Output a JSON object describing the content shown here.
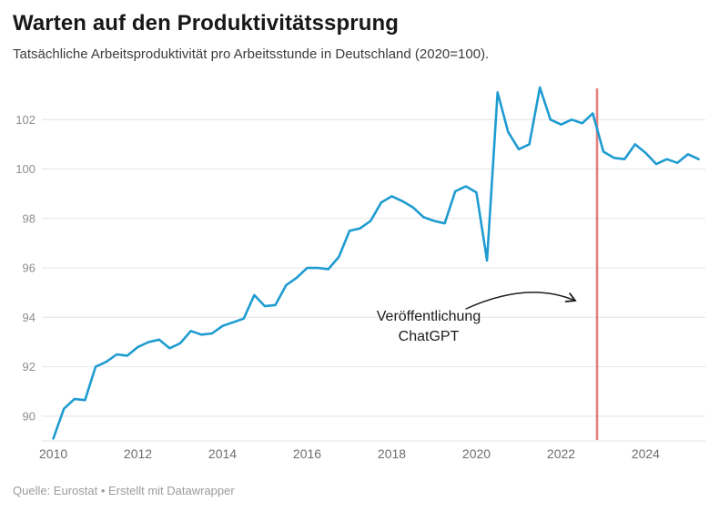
{
  "header": {
    "title": "Warten auf den Produktivitätssprung",
    "subtitle": "Tatsächliche Arbeitsproduktivität pro Arbeitsstunde in Deutschland (2020=100)."
  },
  "annotation": {
    "line1": "Veröffentlichung",
    "line2": "ChatGPT"
  },
  "footer": {
    "source": "Quelle: Eurostat • Erstellt mit Datawrapper"
  },
  "chart_data": {
    "type": "line",
    "title": "Warten auf den Produktivitätssprung",
    "subtitle": "Tatsächliche Arbeitsproduktivität pro Arbeitsstunde in Deutschland (2020=100).",
    "source": "Quelle: Eurostat • Erstellt mit Datawrapper",
    "series_name": "Arbeitsproduktivität pro Arbeitsstunde, Deutschland (2020=100)",
    "frequency": "quarterly",
    "x_start": "2010-Q1",
    "x_end": "2025-Q2",
    "values": [
      89.1,
      90.3,
      90.7,
      90.65,
      92.0,
      92.2,
      92.5,
      92.45,
      92.8,
      93.0,
      93.1,
      92.75,
      92.95,
      93.45,
      93.3,
      93.35,
      93.65,
      93.8,
      93.95,
      94.9,
      94.45,
      94.5,
      95.3,
      95.6,
      96.0,
      96.0,
      95.95,
      96.45,
      97.5,
      97.6,
      97.9,
      98.65,
      98.9,
      98.7,
      98.45,
      98.05,
      97.9,
      97.8,
      99.1,
      99.3,
      99.05,
      96.3,
      103.1,
      101.5,
      100.8,
      101.0,
      103.3,
      102.0,
      101.8,
      102.0,
      101.85,
      102.25,
      100.7,
      100.45,
      100.4,
      101.0,
      100.65,
      100.2,
      100.4,
      100.25,
      100.6,
      100.4
    ],
    "x_ticks": [
      2010,
      2012,
      2014,
      2016,
      2018,
      2020,
      2022,
      2024
    ],
    "y_ticks": [
      90,
      92,
      94,
      96,
      98,
      100,
      102
    ],
    "xlim": [
      2009.73,
      2025.41
    ],
    "ylim": [
      89.0,
      103.3
    ],
    "grid": true,
    "legend": false,
    "line_color": "#1e9bd1",
    "grid_color": "#e4e4e4",
    "event_line": {
      "x": 2022.85,
      "label": "Veröffentlichung ChatGPT",
      "color": "#e06a6a"
    }
  }
}
